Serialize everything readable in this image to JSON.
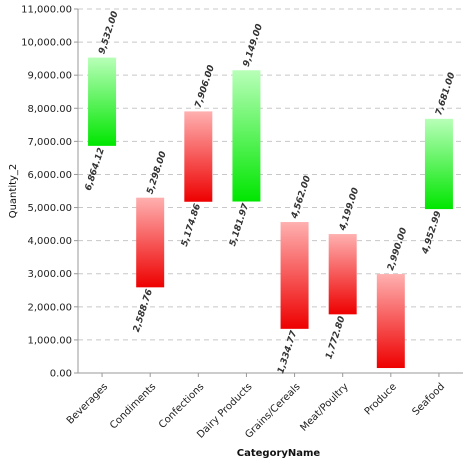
{
  "chart_data": {
    "type": "bar",
    "subtype": "range",
    "title": "",
    "xlabel": "CategoryName",
    "ylabel": "Quantity_2",
    "ylim": [
      0,
      11000
    ],
    "yticks": [
      0,
      1000,
      2000,
      3000,
      4000,
      5000,
      6000,
      7000,
      8000,
      9000,
      10000,
      11000
    ],
    "ytick_labels": [
      "0.00",
      "1,000.00",
      "2,000.00",
      "3,000.00",
      "4,000.00",
      "5,000.00",
      "6,000.00",
      "7,000.00",
      "8,000.00",
      "9,000.00",
      "10,000.00",
      "11,000.00"
    ],
    "grid": true,
    "legend": "none",
    "categories": [
      "Beverages",
      "Condiments",
      "Confections",
      "Dairy Products",
      "Grains/Cereals",
      "Meat/Poultry",
      "Produce",
      "Seafood"
    ],
    "bars": [
      {
        "open": 6864.12,
        "close": 9532.0,
        "open_label": "6,864.12",
        "close_label": "9,532.00"
      },
      {
        "open": 5298.0,
        "close": 2588.76,
        "open_label": "5,298.00",
        "close_label": "2,588.76"
      },
      {
        "open": 7906.0,
        "close": 5174.86,
        "open_label": "7,906.00",
        "close_label": "5,174.86"
      },
      {
        "open": 5181.97,
        "close": 9149.0,
        "open_label": "5,181.97",
        "close_label": "9,149.00"
      },
      {
        "open": 4562.0,
        "close": 1334.77,
        "open_label": "4,562.00",
        "close_label": "1,334.77"
      },
      {
        "open": 4199.0,
        "close": 1772.8,
        "open_label": "4,199.00",
        "close_label": "1,772.80"
      },
      {
        "open": 2990.0,
        "close": 150.0,
        "open_label": "2,990.00",
        "close_label": ""
      },
      {
        "open": 4952.99,
        "close": 7681.0,
        "open_label": "4,952.99",
        "close_label": "7,681.00"
      }
    ],
    "colors": {
      "up_light": "#b8ffb8",
      "up_dark": "#00e600",
      "down_light": "#ffb0b0",
      "down_dark": "#ee0000",
      "grid": "#c8c8c8",
      "axis": "#999999"
    }
  }
}
